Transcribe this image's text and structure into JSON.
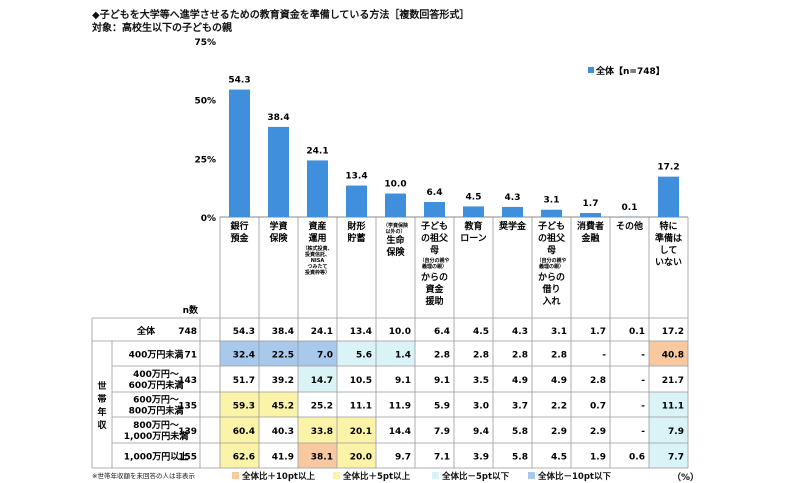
{
  "title": "◆子どもを大学等へ進学させるための教育資金を準備している方法［複数回答形式］",
  "subtitle": "対象：高校生以下の子どもの親",
  "colors": {
    "bar": "#3f8fdc",
    "hi10": "#f8c9a0",
    "hi5": "#fbf4a8",
    "lo5": "#d9f3f7",
    "lo10": "#a9c9ec"
  },
  "chart_data": {
    "type": "bar",
    "yticks": [
      "75%",
      "50%",
      "25%",
      "0%"
    ],
    "ylim": [
      0,
      75
    ],
    "legend": "全体【n=748】",
    "categories": [
      {
        "lines": [
          "銀行",
          "預金"
        ]
      },
      {
        "lines": [
          "学資",
          "保険"
        ]
      },
      {
        "lines": [
          "資産",
          "運用"
        ],
        "note": [
          "（株式投資、",
          "投資信託、",
          "NISA",
          "つみたて",
          "投資枠等）"
        ]
      },
      {
        "lines": [
          "財形",
          "貯蓄"
        ]
      },
      {
        "pre": [
          "（学資保険",
          "以外の）"
        ],
        "lines": [
          "生命",
          "保険"
        ]
      },
      {
        "lines": [
          "子ども",
          "の祖父",
          "母"
        ],
        "note": [
          "（自分の親や",
          "義理の親）"
        ],
        "post": [
          "からの",
          "資金",
          "援助"
        ]
      },
      {
        "lines": [
          "教育",
          "ローン"
        ]
      },
      {
        "lines": [
          "奨学金"
        ]
      },
      {
        "lines": [
          "子ども",
          "の祖父",
          "母"
        ],
        "note": [
          "（自分の親や",
          "義理の親）"
        ],
        "post": [
          "からの",
          "借り",
          "入れ"
        ]
      },
      {
        "lines": [
          "消費者",
          "金融"
        ]
      },
      {
        "lines": [
          "その他"
        ]
      },
      {
        "lines": [
          "特に",
          "準備は",
          "して",
          "いない"
        ]
      }
    ],
    "values": [
      54.3,
      38.4,
      24.1,
      13.4,
      10.0,
      6.4,
      4.5,
      4.3,
      3.1,
      1.7,
      0.1,
      17.2
    ],
    "labels": [
      "54.3",
      "38.4",
      "24.1",
      "13.4",
      "10.0",
      "6.4",
      "4.5",
      "4.3",
      "3.1",
      "1.7",
      "0.1",
      "17.2"
    ]
  },
  "table": {
    "n_header": "n数",
    "group_label": "世帯年収",
    "total": {
      "label": "全体",
      "n": "748",
      "cells": [
        "54.3",
        "38.4",
        "24.1",
        "13.4",
        "10.0",
        "6.4",
        "4.5",
        "4.3",
        "3.1",
        "1.7",
        "0.1",
        "17.2"
      ]
    },
    "rows": [
      {
        "label": [
          "400万円未満"
        ],
        "n": "71",
        "cells": [
          "32.4",
          "22.5",
          "7.0",
          "5.6",
          "1.4",
          "2.8",
          "2.8",
          "2.8",
          "2.8",
          "-",
          "-",
          "40.8"
        ],
        "hl": [
          "lo10",
          "lo10",
          "lo10",
          "lo5",
          "lo5",
          "",
          "",
          "",
          "",
          "",
          "",
          "hi10"
        ]
      },
      {
        "label": [
          "400万円～",
          "600万円未満"
        ],
        "n": "143",
        "cells": [
          "51.7",
          "39.2",
          "14.7",
          "10.5",
          "9.1",
          "9.1",
          "3.5",
          "4.9",
          "4.9",
          "2.8",
          "-",
          "21.7"
        ],
        "hl": [
          "",
          "",
          "lo5",
          "",
          "",
          "",
          "",
          "",
          "",
          "",
          "",
          ""
        ]
      },
      {
        "label": [
          "600万円～",
          "800万円未満"
        ],
        "n": "135",
        "cells": [
          "59.3",
          "45.2",
          "25.2",
          "11.1",
          "11.9",
          "5.9",
          "3.0",
          "3.7",
          "2.2",
          "0.7",
          "-",
          "11.1"
        ],
        "hl": [
          "hi5",
          "hi5",
          "",
          "",
          "",
          "",
          "",
          "",
          "",
          "",
          "",
          "lo5"
        ]
      },
      {
        "label": [
          "800万円～",
          "1,000万円未満"
        ],
        "n": "139",
        "cells": [
          "60.4",
          "40.3",
          "33.8",
          "20.1",
          "14.4",
          "7.9",
          "9.4",
          "5.8",
          "2.9",
          "2.9",
          "-",
          "7.9"
        ],
        "hl": [
          "hi5",
          "",
          "hi5",
          "hi5",
          "",
          "",
          "",
          "",
          "",
          "",
          "",
          "lo5"
        ]
      },
      {
        "label": [
          "1,000万円以上"
        ],
        "n": "155",
        "cells": [
          "62.6",
          "41.9",
          "38.1",
          "20.0",
          "9.7",
          "7.1",
          "3.9",
          "5.8",
          "4.5",
          "1.9",
          "0.6",
          "7.7"
        ],
        "hl": [
          "hi5",
          "",
          "hi10",
          "hi5",
          "",
          "",
          "",
          "",
          "",
          "",
          "",
          "lo5"
        ]
      }
    ]
  },
  "legend": {
    "hi10": "全体比＋10pt以上",
    "hi5": "全体比＋5pt以上",
    "lo5": "全体比－5pt以下",
    "lo10": "全体比－10pt以下"
  },
  "note": "※世帯年収額を未回答の人は非表示",
  "unit": "（%）"
}
